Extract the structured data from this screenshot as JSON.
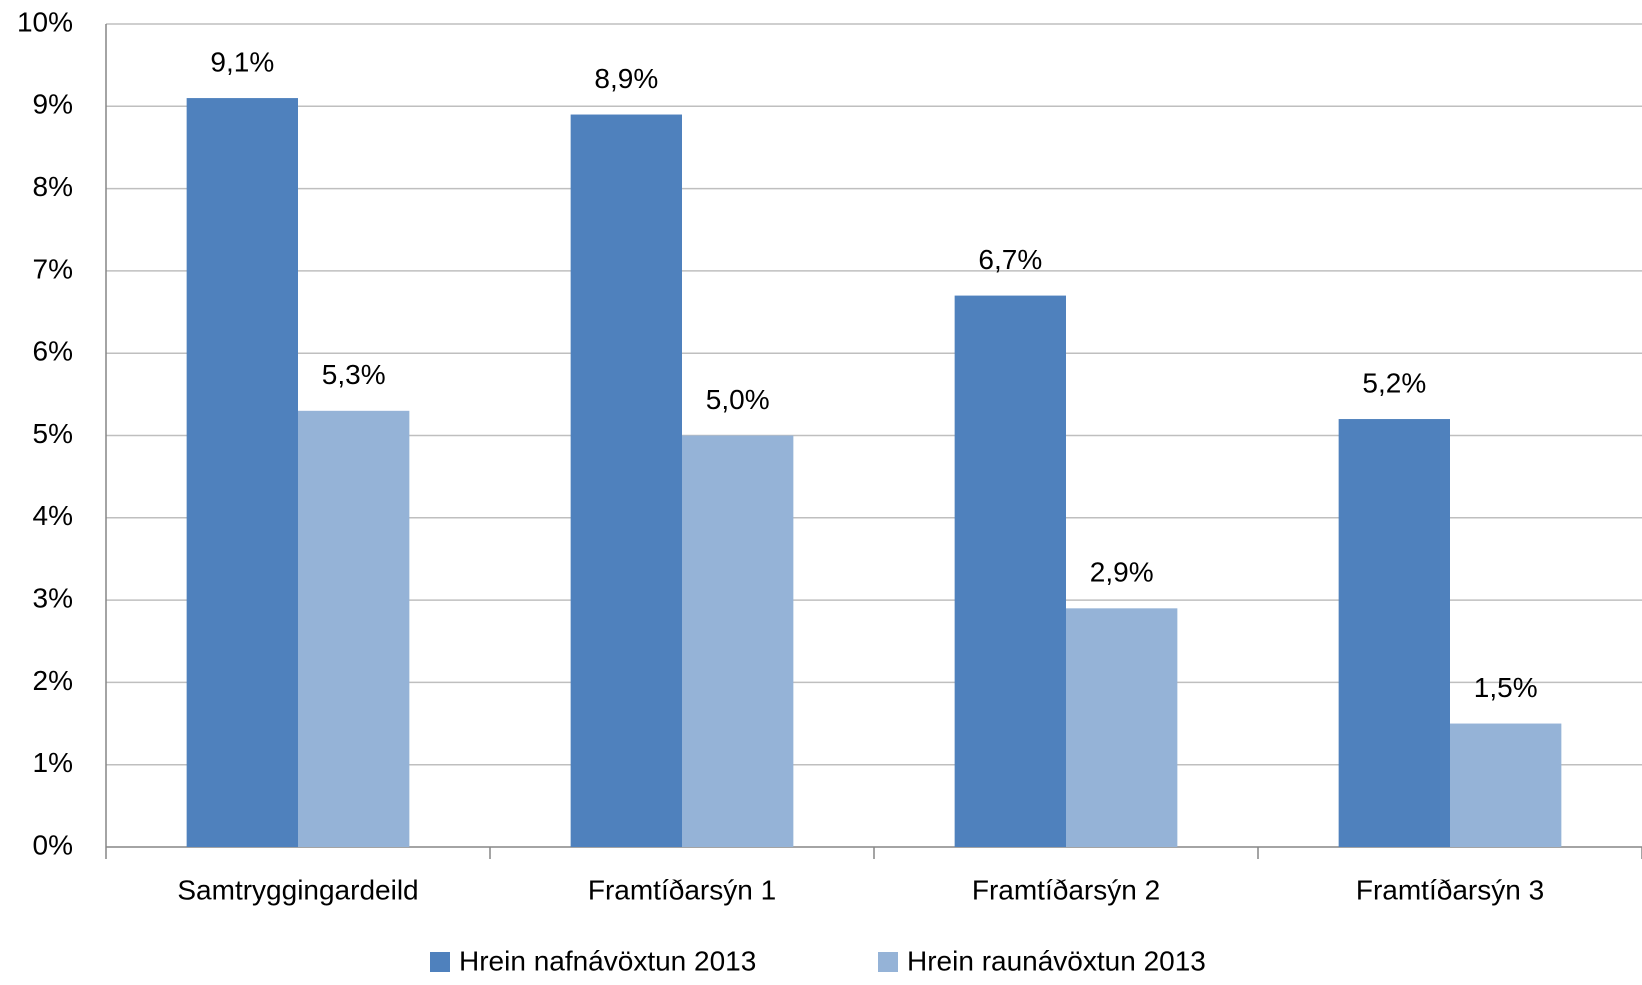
{
  "chart_data": {
    "type": "bar",
    "categories": [
      "Samtryggingardeild",
      "Framtíðarsýn 1",
      "Framtíðarsýn 2",
      "Framtíðarsýn 3"
    ],
    "series": [
      {
        "name": "Hrein nafnávöxtun 2013",
        "color": "#4f81bd",
        "values": [
          9.1,
          8.9,
          6.7,
          5.2
        ],
        "value_labels": [
          "9,1%",
          "8,9%",
          "6,7%",
          "5,2%"
        ]
      },
      {
        "name": "Hrein raunávöxtun 2013",
        "color": "#95b3d7",
        "values": [
          5.3,
          5.0,
          2.9,
          1.5
        ],
        "value_labels": [
          "5,3%",
          "5,0%",
          "2,9%",
          "1,5%"
        ]
      }
    ],
    "ylim": [
      0,
      10
    ],
    "yticks": [
      {
        "value": 0,
        "label": "0%"
      },
      {
        "value": 1,
        "label": "1%"
      },
      {
        "value": 2,
        "label": "2%"
      },
      {
        "value": 3,
        "label": "3%"
      },
      {
        "value": 4,
        "label": "4%"
      },
      {
        "value": 5,
        "label": "5%"
      },
      {
        "value": 6,
        "label": "6%"
      },
      {
        "value": 7,
        "label": "7%"
      },
      {
        "value": 8,
        "label": "8%"
      },
      {
        "value": 9,
        "label": "9%"
      },
      {
        "value": 10,
        "label": "10%"
      }
    ],
    "grid": true,
    "legend": "bottom"
  }
}
